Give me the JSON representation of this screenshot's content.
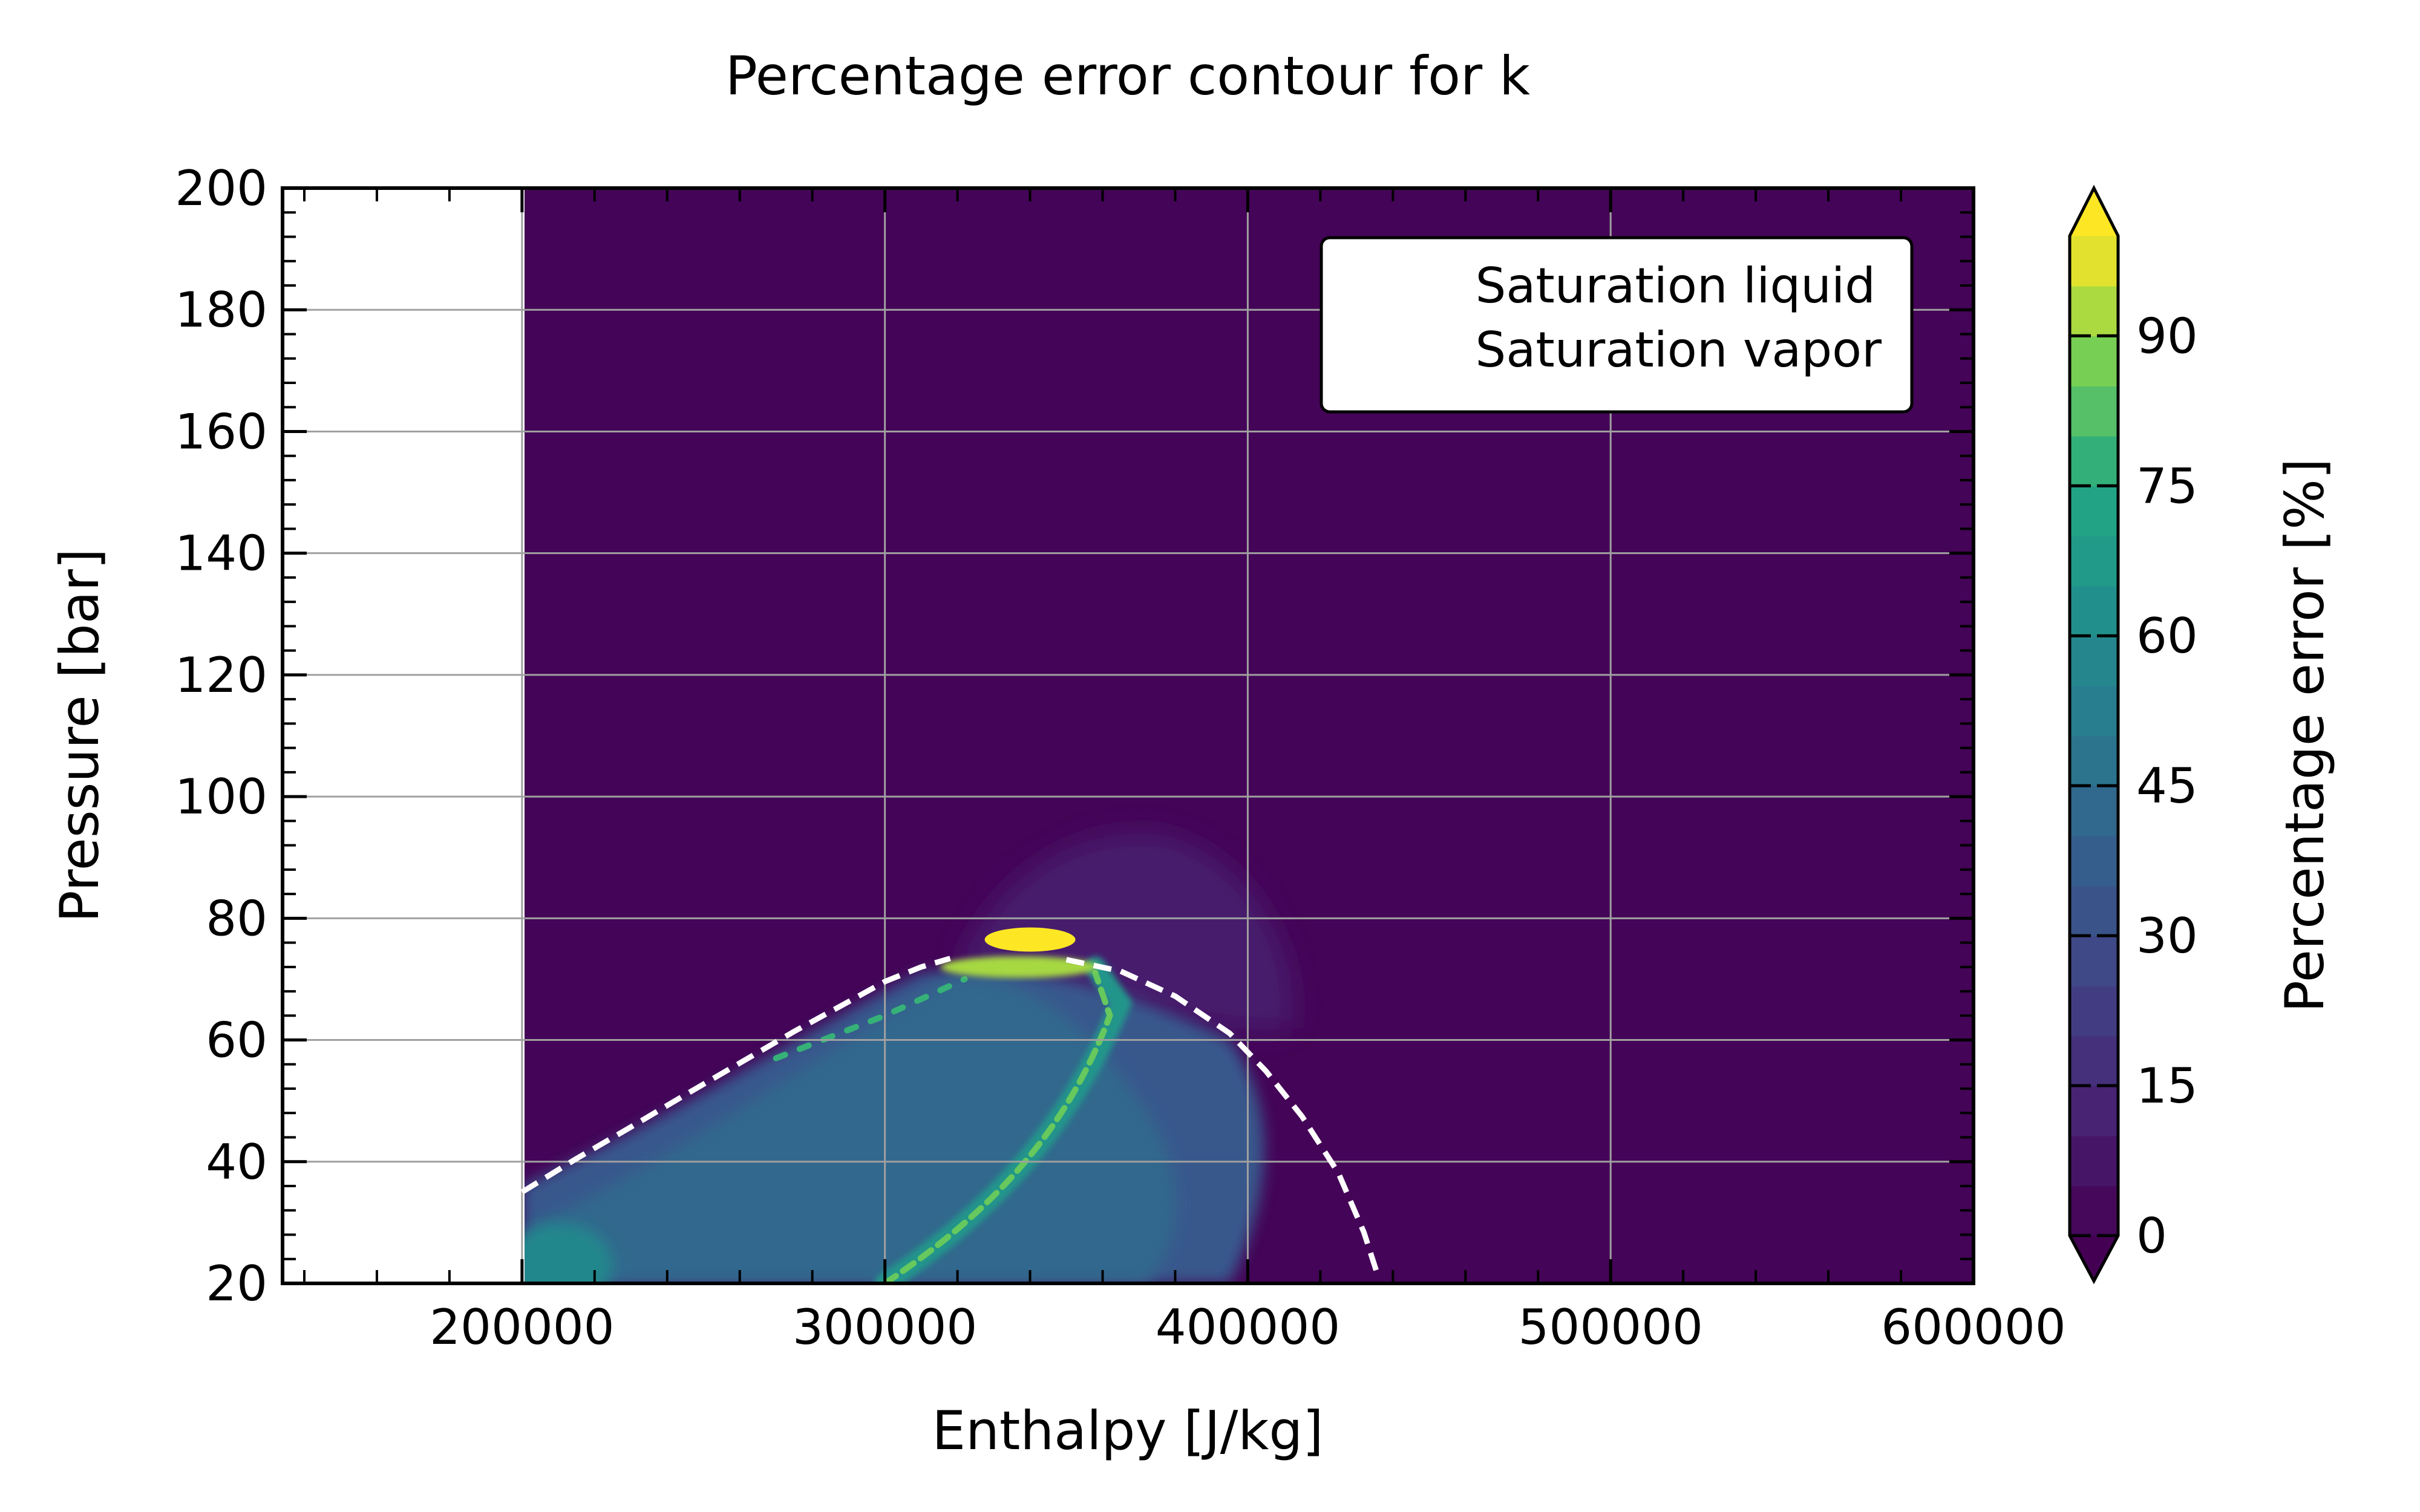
{
  "chart_data": {
    "type": "contour",
    "title": "Percentage error contour for k",
    "xlabel": "Enthalpy [J/kg]",
    "ylabel": "Pressure [bar]",
    "colorbar_label": "Percentage error [%]",
    "xlim": [
      134000,
      600000
    ],
    "ylim": [
      20,
      200
    ],
    "data_x_start": 200000,
    "x_ticks": [
      200000,
      300000,
      400000,
      500000,
      600000
    ],
    "x_tick_labels": [
      "200000",
      "300000",
      "400000",
      "500000",
      "600000"
    ],
    "y_ticks": [
      20,
      40,
      60,
      80,
      100,
      120,
      140,
      160,
      180,
      200
    ],
    "y_tick_labels": [
      "20",
      "40",
      "60",
      "80",
      "100",
      "120",
      "140",
      "160",
      "180",
      "200"
    ],
    "colorbar_ticks": [
      0,
      15,
      30,
      45,
      60,
      75,
      90
    ],
    "colorbar_tick_labels": [
      "0",
      "15",
      "30",
      "45",
      "60",
      "75",
      "90"
    ],
    "colorbar_range": [
      0,
      100
    ],
    "colormap": "viridis",
    "colorbar_extend": "both",
    "grid": true,
    "legend": {
      "placement": "top-right",
      "entries": [
        {
          "label": "Saturation liquid",
          "style": "dashed",
          "color": "#ffffff"
        },
        {
          "label": "Saturation vapor",
          "style": "dashed",
          "color": "#ffffff"
        }
      ]
    },
    "series": [
      {
        "name": "Saturation liquid",
        "style": "dashed",
        "color": "#ffffff",
        "x": [
          200000,
          215000,
          230000,
          245000,
          260000,
          275000,
          290000,
          300000,
          310000,
          318000
        ],
        "y": [
          35,
          40.5,
          45.7,
          51,
          56.2,
          61.4,
          66.3,
          69.6,
          72.0,
          73.4
        ]
      },
      {
        "name": "Saturation vapor",
        "style": "dashed",
        "color": "#ffffff",
        "x": [
          350000,
          365000,
          380000,
          395000,
          405000,
          415000,
          425000,
          432000,
          436000
        ],
        "y": [
          73.2,
          71.3,
          67.2,
          61.1,
          54.9,
          47.4,
          38.1,
          28.4,
          21
        ]
      }
    ],
    "contour_features": [
      {
        "feature": "background",
        "value_range": [
          0,
          5
        ]
      },
      {
        "feature": "low-error halo",
        "x": [
          320000,
          415000
        ],
        "y": [
          55,
          95
        ],
        "value_range": [
          5,
          15
        ]
      },
      {
        "feature": "broad two-phase band",
        "x": [
          200000,
          360000
        ],
        "y": [
          20,
          72
        ],
        "value_range": [
          30,
          45
        ]
      },
      {
        "feature": "ridge along vapor side",
        "x": [
          300000,
          365000
        ],
        "y": [
          20,
          72
        ],
        "value_range": [
          60,
          90
        ]
      },
      {
        "feature": "peak near critical point",
        "x": [
          335000,
          345000
        ],
        "y": [
          75,
          78
        ],
        "value_range": [
          90,
          100
        ]
      }
    ]
  }
}
